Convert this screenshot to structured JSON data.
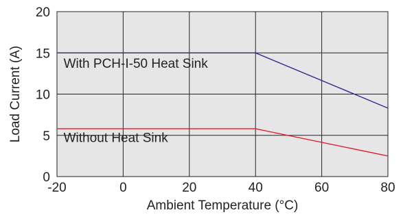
{
  "chart_data": {
    "type": "line",
    "title": "",
    "xlabel": "Ambient Temperature (°C)",
    "ylabel": "Load Current (A)",
    "xlim": [
      -20,
      80
    ],
    "ylim": [
      0,
      20
    ],
    "xticks": [
      -20,
      0,
      20,
      40,
      60,
      80
    ],
    "yticks": [
      0,
      5,
      10,
      15,
      20
    ],
    "grid": true,
    "plot_background": "#e6e6e6",
    "series": [
      {
        "name": "With PCH-I-50 Heat Sink",
        "color": "#2b2b8f",
        "x": [
          -20,
          40,
          80
        ],
        "y": [
          15,
          15,
          8.3
        ]
      },
      {
        "name": "Without Heat Sink",
        "color": "#e0202a",
        "x": [
          -20,
          40,
          80
        ],
        "y": [
          5.8,
          5.8,
          2.5
        ]
      }
    ],
    "annotations": [
      {
        "text": "With PCH-I-50 Heat Sink",
        "x": -18,
        "y": 13.2
      },
      {
        "text": "Without Heat Sink",
        "x": -18,
        "y": 4.2
      }
    ]
  }
}
